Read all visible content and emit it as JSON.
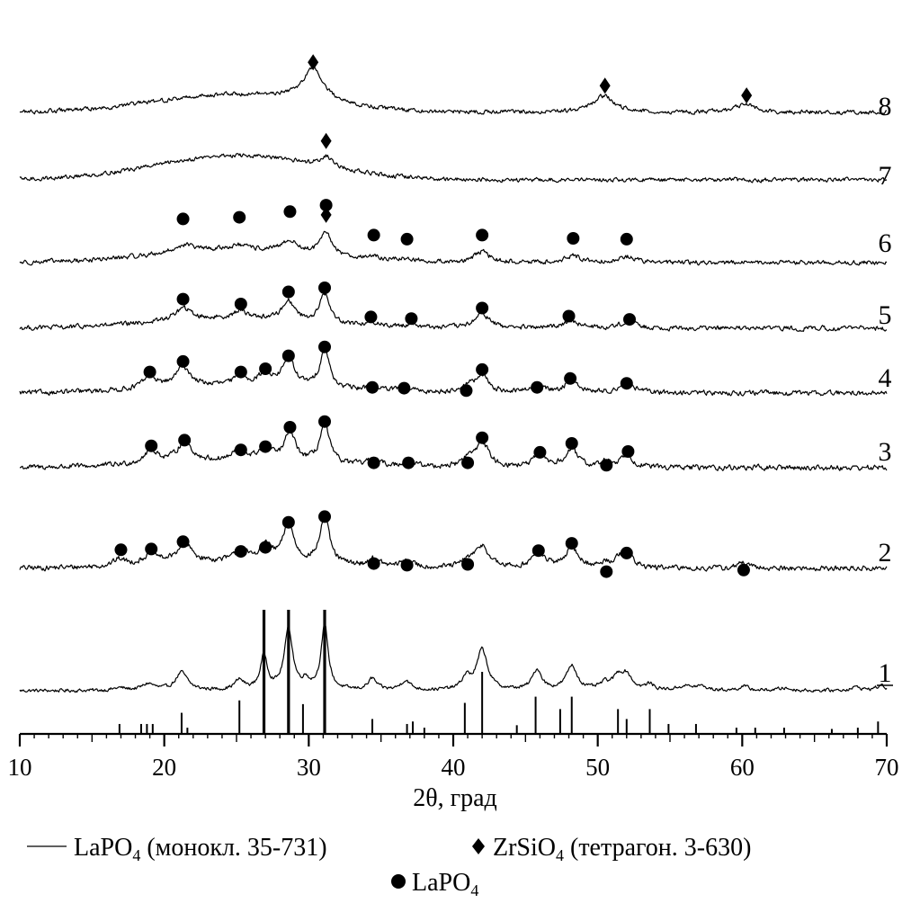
{
  "chart_data": {
    "type": "line",
    "xlabel": "2θ, град",
    "xlim": [
      10,
      70
    ],
    "x_ticks": [
      "10",
      "20",
      "30",
      "40",
      "50",
      "60",
      "70"
    ],
    "grid": false,
    "legend_placement": "bottom",
    "legend": {
      "line_label": "LaPO",
      "line_sub": "4",
      "line_desc": " (монокл. 35-731)",
      "diamond_label": "ZrSiO",
      "diamond_sub": "4",
      "diamond_desc": " (тетрагон. 3-630)",
      "circle_label": "LaPO",
      "circle_sub": "4"
    },
    "reference_pattern": {
      "name": "LaPO4 (монокл. 35-731)",
      "sticks": [
        [
          16.9,
          0.08
        ],
        [
          18.4,
          0.08
        ],
        [
          18.8,
          0.08
        ],
        [
          19.2,
          0.08
        ],
        [
          21.2,
          0.17
        ],
        [
          21.6,
          0.05
        ],
        [
          25.2,
          0.27
        ],
        [
          26.9,
          1.0
        ],
        [
          28.6,
          1.0
        ],
        [
          29.6,
          0.24
        ],
        [
          31.1,
          1.0
        ],
        [
          34.4,
          0.12
        ],
        [
          36.8,
          0.08
        ],
        [
          37.2,
          0.1
        ],
        [
          38.0,
          0.05
        ],
        [
          40.8,
          0.25
        ],
        [
          42.0,
          0.5
        ],
        [
          44.4,
          0.07
        ],
        [
          45.7,
          0.3
        ],
        [
          47.4,
          0.2
        ],
        [
          48.2,
          0.3
        ],
        [
          51.4,
          0.2
        ],
        [
          52.0,
          0.12
        ],
        [
          53.6,
          0.2
        ],
        [
          54.9,
          0.08
        ],
        [
          56.8,
          0.08
        ],
        [
          59.6,
          0.05
        ],
        [
          60.9,
          0.05
        ],
        [
          62.9,
          0.05
        ],
        [
          66.2,
          0.04
        ],
        [
          68.0,
          0.05
        ],
        [
          69.4,
          0.1
        ]
      ]
    },
    "series": [
      {
        "name": "1",
        "baseline": 0,
        "bg_bump": 0,
        "noise": 0.18,
        "peaks": [
          [
            16.9,
            0.5,
            0.3
          ],
          [
            18.9,
            0.5,
            0.8
          ],
          [
            21.2,
            0.5,
            2.2
          ],
          [
            25.2,
            0.4,
            1.2
          ],
          [
            26.9,
            0.3,
            4.2
          ],
          [
            28.6,
            0.35,
            7.5
          ],
          [
            29.8,
            0.3,
            1.0
          ],
          [
            31.1,
            0.3,
            7.9
          ],
          [
            34.4,
            0.35,
            1.4
          ],
          [
            36.7,
            0.4,
            1.2
          ],
          [
            40.9,
            0.35,
            1.5
          ],
          [
            42.0,
            0.45,
            5.0
          ],
          [
            45.8,
            0.4,
            2.5
          ],
          [
            48.2,
            0.45,
            3.0
          ],
          [
            50.5,
            0.4,
            0.8
          ],
          [
            51.4,
            0.4,
            1.5
          ],
          [
            52.0,
            0.45,
            1.8
          ],
          [
            53.6,
            0.35,
            0.7
          ],
          [
            56.0,
            0.5,
            0.5
          ],
          [
            57.1,
            0.5,
            0.5
          ],
          [
            60.1,
            0.4,
            0.5
          ],
          [
            62.9,
            0.5,
            0.3
          ],
          [
            67.9,
            0.5,
            0.4
          ],
          [
            69.6,
            0.4,
            0.6
          ]
        ],
        "markers": []
      },
      {
        "name": "2",
        "baseline": 0,
        "bg_bump": 0.8,
        "noise": 0.28,
        "peaks": [
          [
            16.9,
            0.5,
            0.8
          ],
          [
            19.1,
            0.6,
            1.3
          ],
          [
            21.4,
            0.6,
            2.4
          ],
          [
            25.3,
            0.5,
            1.3
          ],
          [
            27.0,
            0.5,
            2.0
          ],
          [
            28.6,
            0.45,
            4.7
          ],
          [
            31.1,
            0.4,
            5.8
          ],
          [
            34.5,
            0.45,
            0.9
          ],
          [
            36.8,
            0.45,
            0.9
          ],
          [
            41.0,
            0.45,
            0.8
          ],
          [
            42.0,
            0.55,
            2.7
          ],
          [
            45.9,
            0.5,
            2.0
          ],
          [
            48.2,
            0.55,
            2.5
          ],
          [
            50.6,
            0.4,
            0.6
          ],
          [
            51.6,
            0.45,
            1.3
          ],
          [
            52.2,
            0.45,
            1.1
          ],
          [
            60.0,
            0.4,
            0.7
          ]
        ],
        "markers": [
          [
            "circle",
            17.0,
            2.3
          ],
          [
            "circle",
            19.1,
            2.4
          ],
          [
            "circle",
            21.3,
            3.3
          ],
          [
            "circle",
            25.3,
            2.1
          ],
          [
            "circle",
            27.0,
            2.6
          ],
          [
            "circle",
            28.6,
            5.7
          ],
          [
            "circle",
            31.1,
            6.4
          ],
          [
            "circle",
            34.5,
            0.6
          ],
          [
            "circle",
            36.8,
            0.4
          ],
          [
            "circle",
            41.0,
            0.5
          ],
          [
            "circle",
            45.9,
            2.2
          ],
          [
            "circle",
            48.2,
            3.1
          ],
          [
            "circle",
            50.6,
            -0.4
          ],
          [
            "circle",
            52.0,
            1.9
          ],
          [
            "circle",
            60.1,
            -0.2
          ]
        ]
      },
      {
        "name": "3",
        "baseline": 0,
        "bg_bump": 0.8,
        "noise": 0.28,
        "peaks": [
          [
            19.1,
            0.6,
            1.6
          ],
          [
            21.4,
            0.6,
            2.5
          ],
          [
            25.2,
            0.5,
            1.4
          ],
          [
            27.0,
            0.5,
            1.7
          ],
          [
            28.7,
            0.45,
            3.6
          ],
          [
            31.1,
            0.4,
            4.9
          ],
          [
            34.5,
            0.45,
            0.8
          ],
          [
            36.9,
            0.45,
            0.8
          ],
          [
            41.0,
            0.45,
            0.9
          ],
          [
            42.0,
            0.55,
            3.1
          ],
          [
            46.0,
            0.5,
            1.6
          ],
          [
            48.2,
            0.5,
            2.2
          ],
          [
            50.6,
            0.4,
            0.7
          ],
          [
            52.0,
            0.5,
            1.6
          ]
        ],
        "markers": [
          [
            "circle",
            19.1,
            2.7
          ],
          [
            "circle",
            21.4,
            3.4
          ],
          [
            "circle",
            25.3,
            2.2
          ],
          [
            "circle",
            27.0,
            2.6
          ],
          [
            "circle",
            28.7,
            5.0
          ],
          [
            "circle",
            31.1,
            5.7
          ],
          [
            "circle",
            34.5,
            0.6
          ],
          [
            "circle",
            36.9,
            0.6
          ],
          [
            "circle",
            41.0,
            0.6
          ],
          [
            "circle",
            42.0,
            3.7
          ],
          [
            "circle",
            46.0,
            1.9
          ],
          [
            "circle",
            48.2,
            3.0
          ],
          [
            "circle",
            50.6,
            0.3
          ],
          [
            "circle",
            52.1,
            2.0
          ]
        ]
      },
      {
        "name": "4",
        "baseline": 0,
        "bg_bump": 0.9,
        "noise": 0.26,
        "peaks": [
          [
            19.0,
            0.6,
            1.4
          ],
          [
            21.3,
            0.6,
            2.5
          ],
          [
            25.3,
            0.5,
            1.2
          ],
          [
            27.0,
            0.5,
            1.6
          ],
          [
            28.6,
            0.5,
            3.4
          ],
          [
            31.1,
            0.4,
            4.8
          ],
          [
            34.4,
            0.5,
            0.6
          ],
          [
            36.6,
            0.5,
            0.6
          ],
          [
            41.0,
            0.5,
            0.8
          ],
          [
            42.0,
            0.55,
            2.0
          ],
          [
            45.8,
            0.55,
            1.0
          ],
          [
            48.2,
            0.55,
            1.5
          ],
          [
            52.0,
            0.55,
            1.4
          ]
        ],
        "markers": [
          [
            "circle",
            19.0,
            2.6
          ],
          [
            "circle",
            21.3,
            3.9
          ],
          [
            "circle",
            25.3,
            2.6
          ],
          [
            "circle",
            27.0,
            3.0
          ],
          [
            "circle",
            28.6,
            4.6
          ],
          [
            "circle",
            31.1,
            5.7
          ],
          [
            "circle",
            34.4,
            0.7
          ],
          [
            "circle",
            36.6,
            0.6
          ],
          [
            "circle",
            40.9,
            0.3
          ],
          [
            "circle",
            42.0,
            2.9
          ],
          [
            "circle",
            45.8,
            0.7
          ],
          [
            "circle",
            48.1,
            1.8
          ],
          [
            "circle",
            52.0,
            1.2
          ]
        ]
      },
      {
        "name": "5",
        "baseline": 0,
        "bg_bump": 1.2,
        "noise": 0.25,
        "peaks": [
          [
            21.3,
            0.7,
            1.5
          ],
          [
            25.3,
            0.6,
            0.9
          ],
          [
            28.6,
            0.5,
            2.4
          ],
          [
            31.1,
            0.4,
            3.6
          ],
          [
            34.5,
            0.5,
            0.4
          ],
          [
            37.1,
            0.5,
            0.4
          ],
          [
            42.0,
            0.6,
            1.8
          ],
          [
            48.1,
            0.6,
            1.0
          ],
          [
            52.1,
            0.6,
            0.9
          ]
        ],
        "markers": [
          [
            "circle",
            21.3,
            3.6
          ],
          [
            "circle",
            25.3,
            3.0
          ],
          [
            "circle",
            28.6,
            4.5
          ],
          [
            "circle",
            31.1,
            5.0
          ],
          [
            "circle",
            34.3,
            1.4
          ],
          [
            "circle",
            37.1,
            1.2
          ],
          [
            "circle",
            42.0,
            2.5
          ],
          [
            "circle",
            48.0,
            1.5
          ],
          [
            "circle",
            52.2,
            1.1
          ]
        ]
      },
      {
        "name": "6",
        "baseline": 0,
        "bg_bump": 1.6,
        "noise": 0.24,
        "peaks": [
          [
            21.4,
            0.8,
            0.9
          ],
          [
            25.1,
            0.7,
            0.5
          ],
          [
            28.7,
            0.6,
            1.4
          ],
          [
            31.2,
            0.5,
            2.7
          ],
          [
            34.5,
            0.6,
            0.3
          ],
          [
            36.8,
            0.6,
            0.3
          ],
          [
            42.0,
            0.6,
            1.3
          ],
          [
            48.3,
            0.7,
            0.8
          ],
          [
            52.0,
            0.7,
            0.7
          ]
        ],
        "markers": [
          [
            "circle",
            21.3,
            5.4
          ],
          [
            "circle",
            25.2,
            5.6
          ],
          [
            "circle",
            28.7,
            6.3
          ],
          [
            "diamond",
            31.2,
            5.9
          ],
          [
            "circle",
            31.2,
            7.1
          ],
          [
            "circle",
            34.5,
            3.4
          ],
          [
            "circle",
            36.8,
            2.9
          ],
          [
            "circle",
            42.0,
            3.4
          ],
          [
            "circle",
            48.3,
            3.0
          ],
          [
            "circle",
            52.0,
            2.9
          ]
        ]
      },
      {
        "name": "7",
        "baseline": 0,
        "bg_bump": 3.0,
        "noise": 0.22,
        "peaks": [
          [
            31.2,
            0.6,
            1.3
          ]
        ],
        "markers": [
          [
            "diamond",
            31.2,
            4.8
          ]
        ]
      },
      {
        "name": "8",
        "baseline": 0,
        "bg_bump": 2.2,
        "noise": 0.22,
        "peaks": [
          [
            30.3,
            0.9,
            4.0
          ],
          [
            50.4,
            0.9,
            2.0
          ],
          [
            60.2,
            0.8,
            1.0
          ]
        ],
        "markers": [
          [
            "diamond",
            30.3,
            6.2
          ],
          [
            "diamond",
            50.5,
            3.3
          ],
          [
            "diamond",
            60.3,
            2.1
          ]
        ]
      }
    ]
  }
}
